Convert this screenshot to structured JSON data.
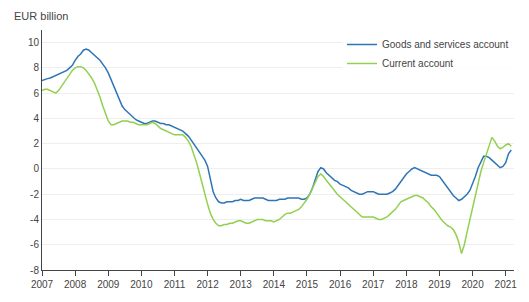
{
  "chart_data": {
    "type": "line",
    "ylabel": "EUR billion",
    "xlim": [
      2007.0,
      2021.25
    ],
    "ylim": [
      -8,
      11
    ],
    "xticks": [
      2007,
      2008,
      2009,
      2010,
      2011,
      2012,
      2013,
      2014,
      2015,
      2016,
      2017,
      2018,
      2019,
      2020,
      2021
    ],
    "yticks": [
      -8,
      -6,
      -4,
      -2,
      0,
      2,
      4,
      6,
      8,
      10
    ],
    "grid": true,
    "legend": "upper right",
    "x": [
      2007.0,
      2007.083,
      2007.167,
      2007.25,
      2007.333,
      2007.417,
      2007.5,
      2007.583,
      2007.667,
      2007.75,
      2007.833,
      2007.917,
      2008.0,
      2008.083,
      2008.167,
      2008.25,
      2008.333,
      2008.417,
      2008.5,
      2008.583,
      2008.667,
      2008.75,
      2008.833,
      2008.917,
      2009.0,
      2009.083,
      2009.167,
      2009.25,
      2009.333,
      2009.417,
      2009.5,
      2009.583,
      2009.667,
      2009.75,
      2009.833,
      2009.917,
      2010.0,
      2010.083,
      2010.167,
      2010.25,
      2010.333,
      2010.417,
      2010.5,
      2010.583,
      2010.667,
      2010.75,
      2010.833,
      2010.917,
      2011.0,
      2011.083,
      2011.167,
      2011.25,
      2011.333,
      2011.417,
      2011.5,
      2011.583,
      2011.667,
      2011.75,
      2011.833,
      2011.917,
      2012.0,
      2012.083,
      2012.167,
      2012.25,
      2012.333,
      2012.417,
      2012.5,
      2012.583,
      2012.667,
      2012.75,
      2012.833,
      2012.917,
      2013.0,
      2013.083,
      2013.167,
      2013.25,
      2013.333,
      2013.417,
      2013.5,
      2013.583,
      2013.667,
      2013.75,
      2013.833,
      2013.917,
      2014.0,
      2014.083,
      2014.167,
      2014.25,
      2014.333,
      2014.417,
      2014.5,
      2014.583,
      2014.667,
      2014.75,
      2014.833,
      2014.917,
      2015.0,
      2015.083,
      2015.167,
      2015.25,
      2015.333,
      2015.417,
      2015.5,
      2015.583,
      2015.667,
      2015.75,
      2015.833,
      2015.917,
      2016.0,
      2016.083,
      2016.167,
      2016.25,
      2016.333,
      2016.417,
      2016.5,
      2016.583,
      2016.667,
      2016.75,
      2016.833,
      2016.917,
      2017.0,
      2017.083,
      2017.167,
      2017.25,
      2017.333,
      2017.417,
      2017.5,
      2017.583,
      2017.667,
      2017.75,
      2017.833,
      2017.917,
      2018.0,
      2018.083,
      2018.167,
      2018.25,
      2018.333,
      2018.417,
      2018.5,
      2018.583,
      2018.667,
      2018.75,
      2018.833,
      2018.917,
      2019.0,
      2019.083,
      2019.167,
      2019.25,
      2019.333,
      2019.417,
      2019.5,
      2019.583,
      2019.667,
      2019.75,
      2019.833,
      2019.917,
      2020.0,
      2020.083,
      2020.167,
      2020.25,
      2020.333,
      2020.417,
      2020.5,
      2020.583,
      2020.667,
      2020.75,
      2020.833,
      2020.917,
      2021.0,
      2021.083,
      2021.167
    ],
    "series": [
      {
        "name": "Goods and services account",
        "color": "#2e75b6",
        "values": [
          7.0,
          7.1,
          7.15,
          7.2,
          7.3,
          7.35,
          7.5,
          7.6,
          7.7,
          7.8,
          8.0,
          8.2,
          8.6,
          8.9,
          9.1,
          9.4,
          9.5,
          9.4,
          9.2,
          9.0,
          8.8,
          8.6,
          8.3,
          8.0,
          7.6,
          7.1,
          6.5,
          6.0,
          5.5,
          5.0,
          4.7,
          4.5,
          4.3,
          4.1,
          3.9,
          3.8,
          3.7,
          3.6,
          3.6,
          3.7,
          3.8,
          3.8,
          3.7,
          3.6,
          3.6,
          3.5,
          3.5,
          3.4,
          3.3,
          3.2,
          3.1,
          3.0,
          2.8,
          2.6,
          2.3,
          2.0,
          1.7,
          1.4,
          1.1,
          0.7,
          0.2,
          -0.8,
          -1.8,
          -2.3,
          -2.6,
          -2.7,
          -2.7,
          -2.6,
          -2.6,
          -2.6,
          -2.5,
          -2.5,
          -2.4,
          -2.5,
          -2.5,
          -2.5,
          -2.4,
          -2.3,
          -2.3,
          -2.3,
          -2.3,
          -2.4,
          -2.5,
          -2.5,
          -2.5,
          -2.5,
          -2.4,
          -2.4,
          -2.4,
          -2.3,
          -2.3,
          -2.3,
          -2.3,
          -2.3,
          -2.4,
          -2.4,
          -2.3,
          -2.0,
          -1.5,
          -0.8,
          -0.2,
          0.1,
          0.0,
          -0.3,
          -0.5,
          -0.7,
          -0.9,
          -1.0,
          -1.2,
          -1.3,
          -1.4,
          -1.5,
          -1.7,
          -1.8,
          -1.9,
          -2.0,
          -2.0,
          -1.9,
          -1.8,
          -1.8,
          -1.8,
          -1.9,
          -2.0,
          -2.0,
          -2.0,
          -2.0,
          -1.9,
          -1.8,
          -1.6,
          -1.3,
          -1.0,
          -0.7,
          -0.4,
          -0.2,
          0.0,
          0.1,
          0.0,
          -0.1,
          -0.2,
          -0.3,
          -0.4,
          -0.5,
          -0.5,
          -0.5,
          -0.6,
          -0.9,
          -1.2,
          -1.5,
          -1.8,
          -2.1,
          -2.3,
          -2.5,
          -2.4,
          -2.2,
          -2.0,
          -1.7,
          -1.2,
          -0.6,
          0.1,
          0.6,
          1.0,
          1.0,
          0.9,
          0.7,
          0.5,
          0.3,
          0.1,
          0.2,
          0.5,
          1.2,
          1.5
        ]
      },
      {
        "name": "Current account",
        "color": "#92d050",
        "values": [
          6.2,
          6.3,
          6.3,
          6.2,
          6.1,
          6.0,
          6.2,
          6.5,
          6.8,
          7.2,
          7.5,
          7.8,
          8.0,
          8.1,
          8.1,
          8.0,
          7.8,
          7.5,
          7.2,
          6.8,
          6.3,
          5.7,
          5.0,
          4.3,
          3.8,
          3.5,
          3.5,
          3.6,
          3.7,
          3.8,
          3.8,
          3.8,
          3.7,
          3.7,
          3.6,
          3.5,
          3.5,
          3.5,
          3.5,
          3.6,
          3.7,
          3.6,
          3.4,
          3.2,
          3.1,
          3.0,
          2.9,
          2.8,
          2.7,
          2.7,
          2.7,
          2.7,
          2.5,
          2.2,
          1.8,
          1.2,
          0.5,
          -0.3,
          -1.2,
          -2.0,
          -2.8,
          -3.5,
          -4.0,
          -4.3,
          -4.5,
          -4.5,
          -4.4,
          -4.4,
          -4.3,
          -4.3,
          -4.2,
          -4.1,
          -4.1,
          -4.2,
          -4.3,
          -4.3,
          -4.2,
          -4.1,
          -4.0,
          -4.0,
          -4.0,
          -4.1,
          -4.1,
          -4.1,
          -4.2,
          -4.1,
          -4.0,
          -3.8,
          -3.6,
          -3.5,
          -3.5,
          -3.4,
          -3.3,
          -3.2,
          -3.0,
          -2.7,
          -2.4,
          -2.0,
          -1.5,
          -1.0,
          -0.6,
          -0.4,
          -0.6,
          -0.9,
          -1.2,
          -1.5,
          -1.8,
          -2.0,
          -2.2,
          -2.4,
          -2.6,
          -2.8,
          -3.0,
          -3.2,
          -3.4,
          -3.6,
          -3.8,
          -3.8,
          -3.8,
          -3.8,
          -3.8,
          -3.9,
          -4.0,
          -4.0,
          -3.9,
          -3.8,
          -3.6,
          -3.4,
          -3.2,
          -2.9,
          -2.6,
          -2.5,
          -2.4,
          -2.3,
          -2.2,
          -2.1,
          -2.1,
          -2.2,
          -2.3,
          -2.5,
          -2.7,
          -3.0,
          -3.2,
          -3.5,
          -3.8,
          -4.1,
          -4.3,
          -4.5,
          -4.6,
          -4.8,
          -5.2,
          -5.8,
          -6.7,
          -6.0,
          -5.0,
          -4.0,
          -3.0,
          -2.0,
          -1.0,
          -0.2,
          0.5,
          1.2,
          1.8,
          2.5,
          2.2,
          1.8,
          1.6,
          1.7,
          1.9,
          2.0,
          1.8
        ]
      }
    ]
  }
}
